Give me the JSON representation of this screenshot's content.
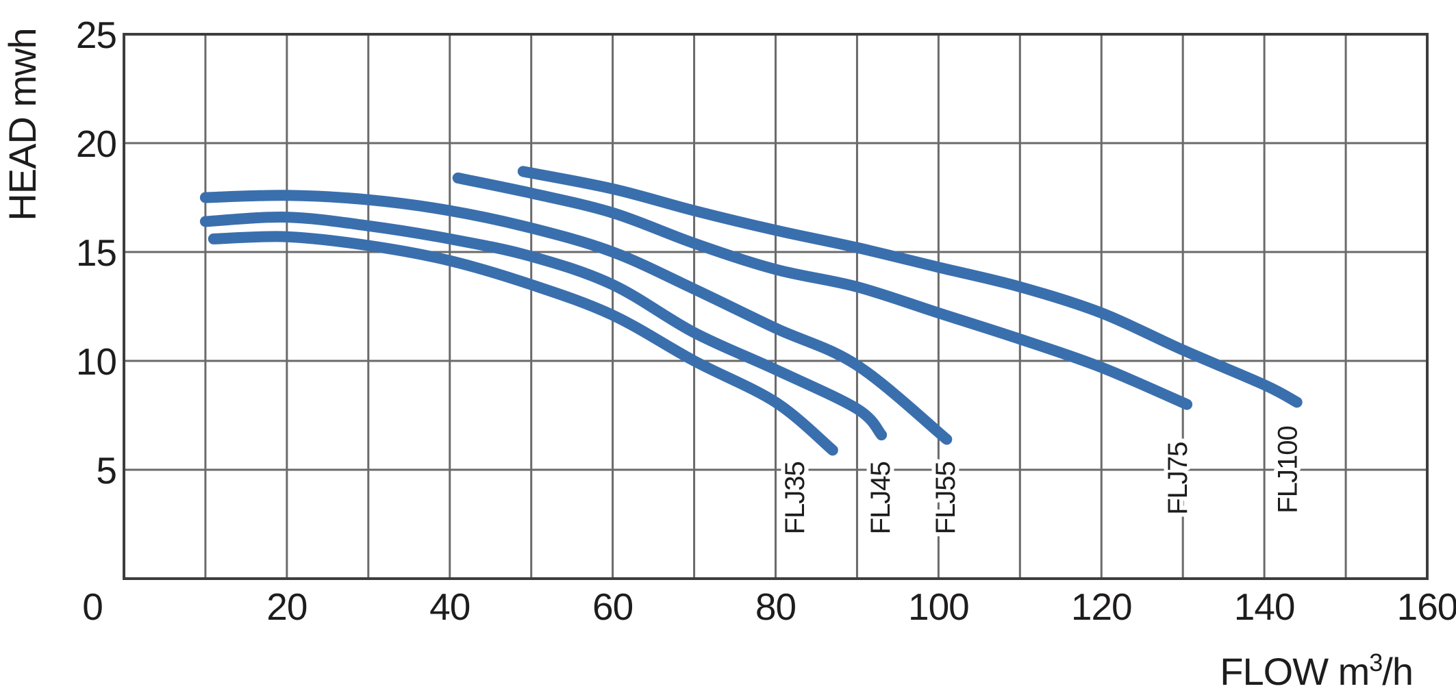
{
  "chart_data": {
    "type": "line",
    "title": "",
    "xlabel": "FLOW m³/h",
    "xlabel_parts": {
      "base": "FLOW m",
      "superscript": "3",
      "rest": "/h"
    },
    "ylabel": "HEAD mwh",
    "x_axis": {
      "min": 0,
      "max": 160,
      "tick_labels": [
        0,
        20,
        40,
        60,
        80,
        100,
        120,
        140,
        160
      ],
      "gridline_step": 10
    },
    "y_axis": {
      "min": 0,
      "max": 25,
      "tick_labels": [
        25,
        20,
        15,
        10,
        5
      ],
      "gridline_step": 5
    },
    "grid": "on",
    "legend_position": "labels-at-curve-ends",
    "series": [
      {
        "name": "FLJ35",
        "points": [
          [
            11,
            15.6
          ],
          [
            20,
            15.7
          ],
          [
            30,
            15.3
          ],
          [
            40,
            14.6
          ],
          [
            50,
            13.5
          ],
          [
            60,
            12.1
          ],
          [
            70,
            10.0
          ],
          [
            80,
            8.1
          ],
          [
            87,
            5.9
          ]
        ],
        "label_at": [
          83.5,
          3.7
        ]
      },
      {
        "name": "FLJ45",
        "points": [
          [
            10,
            16.4
          ],
          [
            20,
            16.6
          ],
          [
            30,
            16.2
          ],
          [
            40,
            15.6
          ],
          [
            50,
            14.8
          ],
          [
            60,
            13.5
          ],
          [
            70,
            11.3
          ],
          [
            80,
            9.6
          ],
          [
            90,
            7.8
          ],
          [
            93,
            6.6
          ]
        ],
        "label_at": [
          94,
          3.7
        ]
      },
      {
        "name": "FLJ55",
        "points": [
          [
            10,
            17.5
          ],
          [
            20,
            17.6
          ],
          [
            30,
            17.4
          ],
          [
            40,
            16.9
          ],
          [
            50,
            16.1
          ],
          [
            60,
            15.0
          ],
          [
            70,
            13.3
          ],
          [
            80,
            11.5
          ],
          [
            90,
            9.8
          ],
          [
            101,
            6.4
          ]
        ],
        "label_at": [
          102,
          3.7
        ]
      },
      {
        "name": "FLJ75",
        "points": [
          [
            41,
            18.4
          ],
          [
            50,
            17.7
          ],
          [
            60,
            16.8
          ],
          [
            70,
            15.4
          ],
          [
            80,
            14.2
          ],
          [
            90,
            13.4
          ],
          [
            100,
            12.2
          ],
          [
            110,
            11.0
          ],
          [
            120,
            9.7
          ],
          [
            130.5,
            8.0
          ]
        ],
        "label_at": [
          130.5,
          4.6
        ]
      },
      {
        "name": "FLJ100",
        "points": [
          [
            49,
            18.7
          ],
          [
            60,
            17.9
          ],
          [
            70,
            16.9
          ],
          [
            80,
            16.0
          ],
          [
            90,
            15.2
          ],
          [
            100,
            14.3
          ],
          [
            110,
            13.4
          ],
          [
            120,
            12.2
          ],
          [
            130,
            10.5
          ],
          [
            140,
            8.9
          ],
          [
            144,
            8.1
          ]
        ],
        "label_at": [
          144,
          5.0
        ]
      }
    ],
    "colors": {
      "curve": "#3a6fae",
      "grid": "#6a6a6a",
      "border": "#3d3d3d",
      "text": "#1e1c1c"
    }
  }
}
